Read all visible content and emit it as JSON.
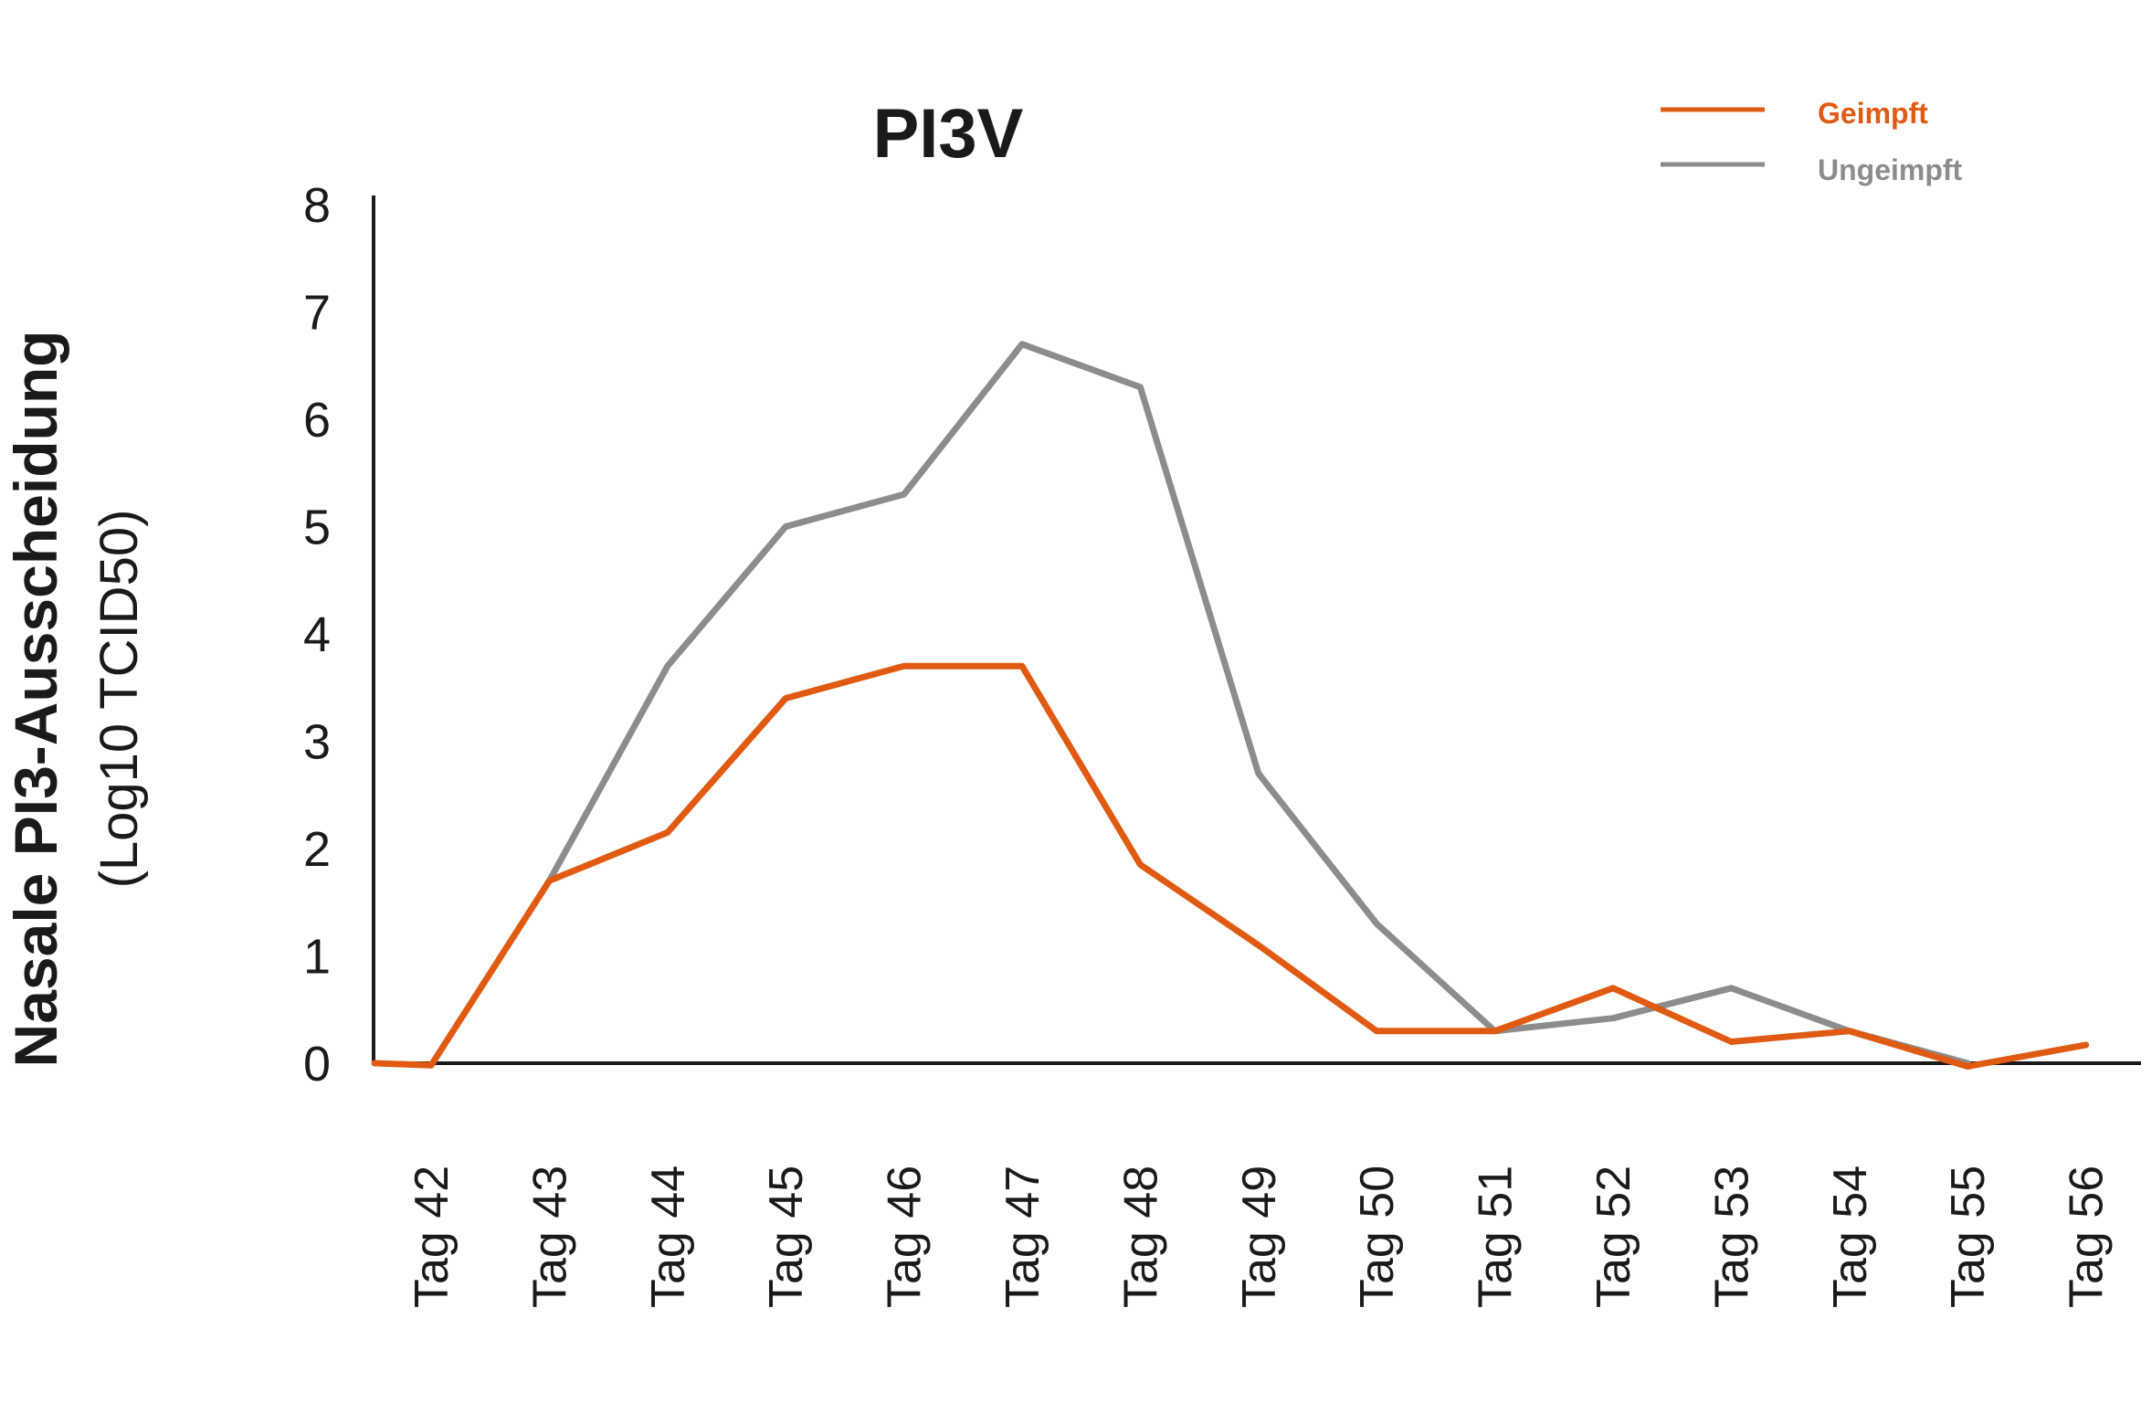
{
  "chart_data": {
    "type": "line",
    "title": "PI3V",
    "ylabel_main": "Nasale PI3-Ausscheidung",
    "ylabel_sub": "(Log10 TCID50)",
    "xlabel": "",
    "categories": [
      "Tag 42",
      "Tag 43",
      "Tag 44",
      "Tag 45",
      "Tag 46",
      "Tag 47",
      "Tag 48",
      "Tag 49",
      "Tag 50",
      "Tag 51",
      "Tag 52",
      "Tag 53",
      "Tag 54",
      "Tag 55",
      "Tag 56"
    ],
    "ylim": [
      0,
      8
    ],
    "yticks": [
      "0",
      "1",
      "2",
      "3",
      "4",
      "5",
      "6",
      "7",
      "8"
    ],
    "legend_position": "top-right",
    "series": [
      {
        "name": "Geimpft",
        "color": "#e05a12",
        "values": [
          -0.02,
          1.7,
          2.15,
          3.4,
          3.7,
          3.7,
          1.85,
          1.1,
          0.3,
          0.3,
          0.7,
          0.2,
          0.3,
          -0.03,
          0.17
        ],
        "start_value": 0.0
      },
      {
        "name": "Ungeimpft",
        "color": "#8c8c8c",
        "values": [
          null,
          1.7,
          3.7,
          5.0,
          5.3,
          6.7,
          6.3,
          2.7,
          1.3,
          0.3,
          0.42,
          0.7,
          0.3,
          0.0,
          null
        ]
      }
    ]
  }
}
